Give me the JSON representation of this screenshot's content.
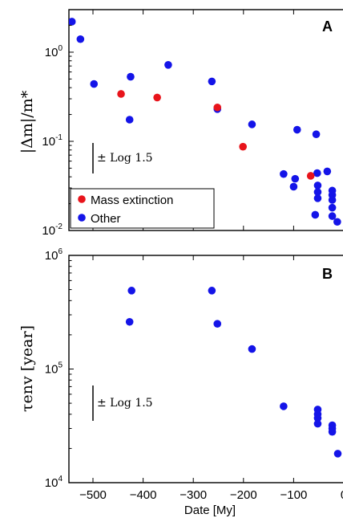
{
  "colors": {
    "mass_extinction": "#e8141b",
    "other": "#1414e8",
    "axes": "#000000"
  },
  "chart_data": [
    {
      "type": "scatter",
      "panel_label": "A",
      "ylabel": "|Δm|/m*",
      "yscale": "log",
      "xlim": [
        -560,
        -10
      ],
      "ylim": [
        0.01,
        3
      ],
      "yticks": [
        {
          "base": "10",
          "exp": "0",
          "value": 1
        },
        {
          "base": "10",
          "exp": "-1",
          "value": 0.1
        },
        {
          "base": "10",
          "exp": "-2",
          "value": 0.01
        }
      ],
      "errorbar_label": "± Log 1.5",
      "legend": {
        "position": "bottom-left",
        "entries": [
          "Mass extinction",
          "Other"
        ]
      },
      "series": [
        {
          "name": "Mass extinction",
          "points": [
            {
              "x": -444,
              "y": 0.34
            },
            {
              "x": -372,
              "y": 0.31
            },
            {
              "x": -252,
              "y": 0.24
            },
            {
              "x": -201,
              "y": 0.087
            },
            {
              "x": -66,
              "y": 0.041
            }
          ]
        },
        {
          "name": "Other",
          "points": [
            {
              "x": -542,
              "y": 2.2
            },
            {
              "x": -525,
              "y": 1.4
            },
            {
              "x": -498,
              "y": 0.44
            },
            {
              "x": -425,
              "y": 0.53
            },
            {
              "x": -427,
              "y": 0.175
            },
            {
              "x": -350,
              "y": 0.72
            },
            {
              "x": -263,
              "y": 0.47
            },
            {
              "x": -252,
              "y": 0.23
            },
            {
              "x": -183,
              "y": 0.155
            },
            {
              "x": -120,
              "y": 0.043
            },
            {
              "x": -100,
              "y": 0.031
            },
            {
              "x": -97,
              "y": 0.038
            },
            {
              "x": -93,
              "y": 0.135
            },
            {
              "x": -55,
              "y": 0.12
            },
            {
              "x": -53,
              "y": 0.044
            },
            {
              "x": -52,
              "y": 0.032
            },
            {
              "x": -52,
              "y": 0.027
            },
            {
              "x": -52,
              "y": 0.023
            },
            {
              "x": -57,
              "y": 0.015
            },
            {
              "x": -33,
              "y": 0.046
            },
            {
              "x": -23,
              "y": 0.028
            },
            {
              "x": -23,
              "y": 0.025
            },
            {
              "x": -23,
              "y": 0.022
            },
            {
              "x": -23,
              "y": 0.018
            },
            {
              "x": -23,
              "y": 0.0145
            },
            {
              "x": -13,
              "y": 0.0125
            }
          ]
        }
      ]
    },
    {
      "type": "scatter",
      "panel_label": "B",
      "ylabel": "τenv [year]",
      "yscale": "log",
      "xlim": [
        -560,
        -10
      ],
      "ylim": [
        10000,
        1000000
      ],
      "xlabel": "Date [My]",
      "xticks": [
        -500,
        -400,
        -300,
        -200,
        -100,
        0
      ],
      "xtick_labels": [
        "−500",
        "−400",
        "−300",
        "−200",
        "−100",
        "0"
      ],
      "yticks": [
        {
          "base": "10",
          "exp": "6",
          "value": 1000000
        },
        {
          "base": "10",
          "exp": "5",
          "value": 100000
        },
        {
          "base": "10",
          "exp": "4",
          "value": 10000
        }
      ],
      "errorbar_label": "± Log 1.5",
      "series": [
        {
          "name": "Other",
          "points": [
            {
              "x": -423,
              "y": 490000
            },
            {
              "x": -427,
              "y": 260000
            },
            {
              "x": -263,
              "y": 490000
            },
            {
              "x": -252,
              "y": 250000
            },
            {
              "x": -183,
              "y": 150000
            },
            {
              "x": -120,
              "y": 47000
            },
            {
              "x": -52,
              "y": 44000
            },
            {
              "x": -52,
              "y": 40000
            },
            {
              "x": -52,
              "y": 37000
            },
            {
              "x": -52,
              "y": 33000
            },
            {
              "x": -23,
              "y": 32000
            },
            {
              "x": -23,
              "y": 30000
            },
            {
              "x": -23,
              "y": 28000
            },
            {
              "x": -12,
              "y": 18000
            }
          ]
        }
      ]
    }
  ]
}
